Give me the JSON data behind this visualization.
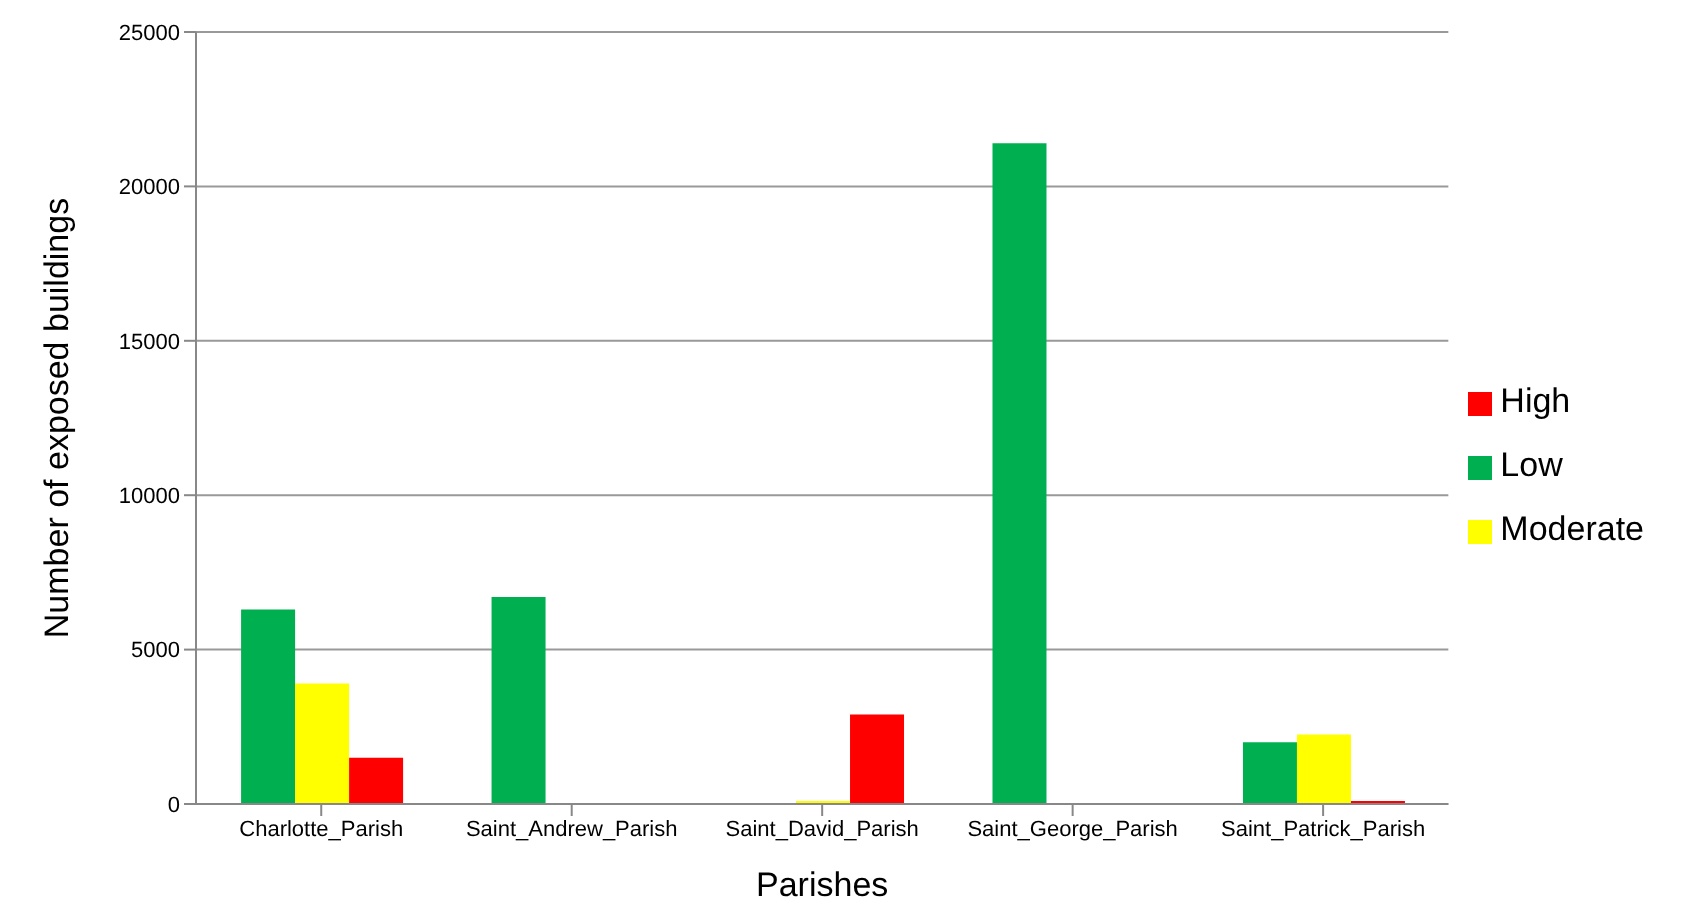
{
  "chart_data": {
    "type": "bar",
    "xlabel": "Parishes",
    "ylabel": "Number of exposed  buildings",
    "categories": [
      "Charlotte_Parish",
      "Saint_Andrew_Parish",
      "Saint_David_Parish",
      "Saint_George_Parish",
      "Saint_Patrick_Parish"
    ],
    "series": [
      {
        "name": "Low",
        "color": "#00b050",
        "values": [
          6300,
          6700,
          0,
          21400,
          2000
        ]
      },
      {
        "name": "Moderate",
        "color": "#ffff00",
        "values": [
          3900,
          0,
          100,
          0,
          2250
        ]
      },
      {
        "name": "High",
        "color": "#ff0000",
        "values": [
          1500,
          0,
          2900,
          0,
          100
        ]
      }
    ],
    "ylim": [
      0,
      25000
    ],
    "yticks": [
      0,
      5000,
      10000,
      15000,
      20000,
      25000
    ],
    "grid": "y",
    "legend": "right"
  }
}
